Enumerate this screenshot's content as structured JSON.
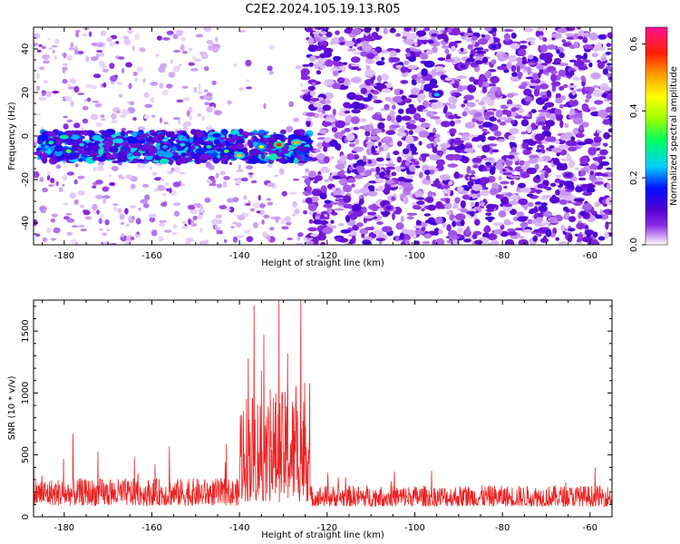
{
  "figure_title": "C2E2.2024.105.19.13.R05",
  "chart_data": [
    {
      "type": "heatmap",
      "xlabel": "Height of straight line (km)",
      "ylabel": "Frequency (Hz)",
      "xlim": [
        -187,
        -55
      ],
      "ylim": [
        -50,
        50
      ],
      "x_ticks": [
        -180,
        -160,
        -140,
        -120,
        -100,
        -80,
        -60
      ],
      "y_ticks": [
        -40,
        -20,
        0,
        20,
        40
      ],
      "grid": false,
      "colorbar": {
        "label": "Normalized spectral amplitude",
        "range": [
          0,
          0.65
        ],
        "ticks": [
          0.0,
          0.2,
          0.4,
          0.6
        ],
        "tick_labels": [
          "0.0",
          "0.2",
          "0.4",
          "0.6"
        ],
        "colors": [
          "#ffffff",
          "#d9b6f7",
          "#8a2be2",
          "#5500d0",
          "#0010ff",
          "#00d0ff",
          "#00ff60",
          "#a0ff00",
          "#ffff00",
          "#ffa000",
          "#ff2000",
          "#ff1090"
        ]
      },
      "features": {
        "strong_band": {
          "x_range": [
            -186,
            -124
          ],
          "freq_center": -5,
          "freq_halfwidth": 7,
          "peak_amplitude": 0.6
        },
        "weak_region_before_gap": {
          "x_range": [
            -187,
            -125
          ],
          "density": "low"
        },
        "dense_region": {
          "x_range": [
            -125,
            -55
          ],
          "density": "high"
        }
      },
      "cells": [
        [
          -183,
          -3,
          0.3
        ],
        [
          -179,
          -7,
          0.36
        ],
        [
          -176,
          -4,
          0.24
        ],
        [
          -166,
          -6,
          0.18
        ],
        [
          -157,
          -5,
          0.22
        ],
        [
          -153,
          -4,
          0.26
        ],
        [
          -147,
          -5,
          0.28
        ],
        [
          -143,
          -7,
          0.34
        ],
        [
          -140,
          -9,
          0.48
        ],
        [
          -135,
          -5,
          0.42
        ],
        [
          -131,
          -4,
          0.6
        ],
        [
          -127,
          -3,
          0.5
        ],
        [
          -95,
          19,
          0.23
        ],
        [
          -89,
          32,
          0.12
        ],
        [
          -82,
          41,
          0.15
        ],
        [
          -65,
          -18,
          0.12
        ],
        [
          -106,
          -33,
          0.11
        ]
      ]
    },
    {
      "type": "line",
      "xlabel": "Height of straight line (km)",
      "ylabel": "SNR (10 * v/v)",
      "xlim": [
        -187,
        -55
      ],
      "ylim": [
        0,
        1750
      ],
      "x_ticks": [
        -180,
        -160,
        -140,
        -120,
        -100,
        -80,
        -60
      ],
      "y_ticks": [
        0,
        500,
        1000,
        1500
      ],
      "grid": false,
      "series_color": "#ee2222",
      "segments": [
        {
          "x_range": [
            -187,
            -140
          ],
          "baseline": 150,
          "spread": 220,
          "occasional_peak": 660
        },
        {
          "x_range": [
            -140,
            -124
          ],
          "baseline": 200,
          "spread": 900,
          "occasional_peak": 1750
        },
        {
          "x_range": [
            -124,
            -55
          ],
          "baseline": 140,
          "spread": 170,
          "occasional_peak": 400
        }
      ],
      "peaks": [
        [
          -178,
          670
        ],
        [
          -164,
          480
        ],
        [
          -156,
          570
        ],
        [
          -143,
          590
        ],
        [
          -138,
          1280
        ],
        [
          -135,
          1180
        ],
        [
          -133,
          1030
        ],
        [
          -131,
          1750
        ],
        [
          -129,
          1320
        ],
        [
          -126,
          1750
        ],
        [
          -124,
          1080
        ]
      ]
    }
  ]
}
